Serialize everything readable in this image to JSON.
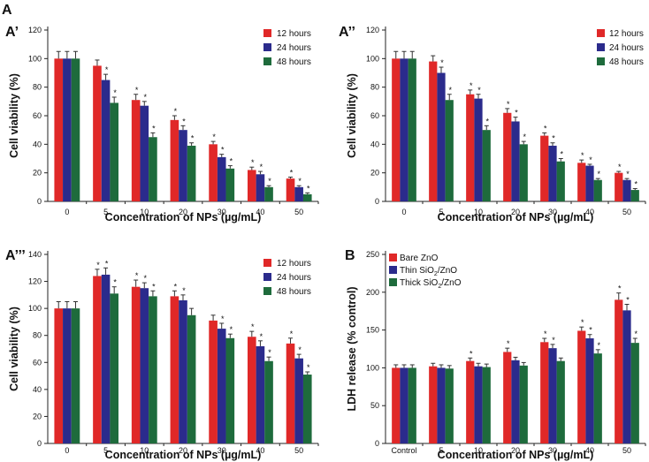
{
  "figure_label": "A",
  "series_colors": [
    "#e02828",
    "#2b2b8c",
    "#1e6b3c"
  ],
  "chart_data": [
    {
      "id": "A1",
      "type": "bar",
      "panel_label": "A’",
      "xlabel": "Concentration of NPs (µg/mL)",
      "ylabel": "Cell viability (%)",
      "ylim": [
        0,
        120
      ],
      "yticks": [
        0,
        20,
        40,
        60,
        80,
        100,
        120
      ],
      "categories": [
        "0",
        "5",
        "10",
        "20",
        "30",
        "40",
        "50"
      ],
      "legend_position": "top-right",
      "series": [
        {
          "name": "12 hours",
          "values": [
            100,
            95,
            71,
            57,
            40,
            22,
            16
          ],
          "errors": [
            5,
            4,
            4,
            3,
            2,
            2,
            1
          ],
          "stars": [
            false,
            false,
            true,
            true,
            true,
            true,
            true
          ]
        },
        {
          "name": "24 hours",
          "values": [
            100,
            85,
            67,
            50,
            31,
            19,
            10
          ],
          "errors": [
            5,
            4,
            3,
            3,
            2,
            2,
            1
          ],
          "stars": [
            false,
            true,
            true,
            true,
            true,
            true,
            true
          ]
        },
        {
          "name": "48 hours",
          "values": [
            100,
            69,
            45,
            39,
            23,
            10,
            5
          ],
          "errors": [
            5,
            4,
            3,
            2,
            2,
            1,
            1
          ],
          "stars": [
            false,
            true,
            true,
            true,
            true,
            true,
            true
          ]
        }
      ]
    },
    {
      "id": "A2",
      "type": "bar",
      "panel_label": "A’’",
      "xlabel": "Concentration of NPs (µg/mL)",
      "ylabel": "Cell viability (%)",
      "ylim": [
        0,
        120
      ],
      "yticks": [
        0,
        20,
        40,
        60,
        80,
        100,
        120
      ],
      "categories": [
        "0",
        "5",
        "10",
        "20",
        "30",
        "40",
        "50"
      ],
      "legend_position": "top-right",
      "series": [
        {
          "name": "12 hours",
          "values": [
            100,
            98,
            75,
            62,
            46,
            27,
            20
          ],
          "errors": [
            5,
            4,
            3,
            3,
            2,
            2,
            1
          ],
          "stars": [
            false,
            false,
            true,
            true,
            true,
            true,
            true
          ]
        },
        {
          "name": "24 hours",
          "values": [
            100,
            90,
            72,
            56,
            39,
            25,
            15
          ],
          "errors": [
            5,
            4,
            3,
            3,
            2,
            1,
            1
          ],
          "stars": [
            false,
            true,
            true,
            true,
            true,
            true,
            true
          ]
        },
        {
          "name": "48 hours",
          "values": [
            100,
            71,
            50,
            40,
            28,
            15,
            8
          ],
          "errors": [
            5,
            4,
            3,
            2,
            2,
            1,
            1
          ],
          "stars": [
            false,
            true,
            true,
            true,
            true,
            true,
            true
          ]
        }
      ]
    },
    {
      "id": "A3",
      "type": "bar",
      "panel_label": "A’’’",
      "xlabel": "Concentration of NPs (µg/mL)",
      "ylabel": "Cell viability (%)",
      "ylim": [
        0,
        140
      ],
      "yticks": [
        0,
        20,
        40,
        60,
        80,
        100,
        120,
        140
      ],
      "categories": [
        "0",
        "5",
        "10",
        "20",
        "30",
        "40",
        "50"
      ],
      "legend_position": "top-right",
      "series": [
        {
          "name": "12 hours",
          "values": [
            100,
            124,
            116,
            109,
            91,
            79,
            74
          ],
          "errors": [
            5,
            5,
            5,
            4,
            4,
            4,
            4
          ],
          "stars": [
            false,
            true,
            true,
            true,
            false,
            true,
            true
          ]
        },
        {
          "name": "24 hours",
          "values": [
            100,
            125,
            115,
            106,
            85,
            72,
            63
          ],
          "errors": [
            5,
            5,
            4,
            4,
            4,
            4,
            3
          ],
          "stars": [
            false,
            true,
            true,
            true,
            true,
            true,
            true
          ]
        },
        {
          "name": "48 hours",
          "values": [
            100,
            111,
            109,
            95,
            78,
            61,
            51
          ],
          "errors": [
            5,
            5,
            4,
            5,
            3,
            3,
            2
          ],
          "stars": [
            false,
            true,
            true,
            false,
            true,
            true,
            true
          ]
        }
      ]
    },
    {
      "id": "B",
      "type": "bar",
      "panel_label": "B",
      "xlabel": "Concentration of NPs (µg/mL)",
      "ylabel": "LDH release (% control)",
      "ylim": [
        0,
        250
      ],
      "yticks": [
        0,
        50,
        100,
        150,
        200,
        250
      ],
      "categories": [
        "Control",
        "5",
        "10",
        "20",
        "30",
        "40",
        "50"
      ],
      "legend_position": "top-left",
      "series": [
        {
          "name": "Bare ZnO",
          "name_parts": [
            "Bare ZnO"
          ],
          "values": [
            100,
            102,
            109,
            121,
            134,
            149,
            190
          ],
          "errors": [
            4,
            4,
            4,
            5,
            5,
            5,
            9
          ],
          "stars": [
            false,
            false,
            true,
            true,
            true,
            true,
            true
          ]
        },
        {
          "name": "Thin SiO2/ZnO",
          "name_parts": [
            "Thin SiO",
            "2",
            "/ZnO"
          ],
          "values": [
            100,
            100,
            102,
            110,
            126,
            139,
            176
          ],
          "errors": [
            4,
            4,
            4,
            4,
            5,
            5,
            8
          ],
          "stars": [
            false,
            false,
            false,
            false,
            true,
            true,
            true
          ]
        },
        {
          "name": "Thick SiO2/ZnO",
          "name_parts": [
            "Thick SiO",
            "2",
            "/ZnO"
          ],
          "values": [
            100,
            99,
            101,
            103,
            109,
            119,
            133
          ],
          "errors": [
            4,
            4,
            4,
            4,
            4,
            5,
            6
          ],
          "stars": [
            false,
            false,
            false,
            false,
            false,
            true,
            true
          ]
        }
      ]
    }
  ]
}
